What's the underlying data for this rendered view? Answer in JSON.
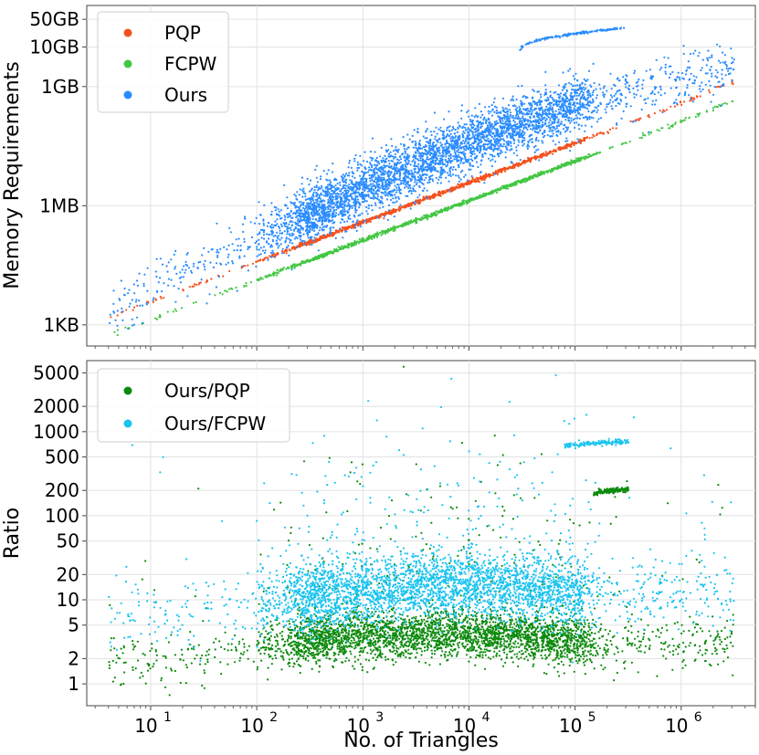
{
  "chart_data": [
    {
      "type": "scatter",
      "title": "",
      "xlabel": "",
      "ylabel": "Memory Requirements",
      "xscale": "log",
      "yscale": "log",
      "xlim": [
        2.5,
        5000000
      ],
      "ylim_bytes": [
        300,
        120000000000
      ],
      "yticks": [
        {
          "value": 1024,
          "label": "1KB"
        },
        {
          "value": 1048576,
          "label": "1MB"
        },
        {
          "value": 1073741824,
          "label": "1GB"
        },
        {
          "value": 10737418240,
          "label": "10GB"
        },
        {
          "value": 53687091200,
          "label": "50GB"
        }
      ],
      "grid": true,
      "legend_position": "top-left",
      "series": [
        {
          "name": "PQP",
          "color": "#f4511e",
          "trend": "approximately linear in triangle count",
          "points": [
            [
              4,
              1600
            ],
            [
              10,
              4000
            ],
            [
              100,
              40000
            ],
            [
              1000,
              400000
            ],
            [
              10000,
              4000000
            ],
            [
              100000,
              40000000
            ],
            [
              1000000,
              400000000
            ],
            [
              3000000,
              1400000000
            ]
          ]
        },
        {
          "name": "FCPW",
          "color": "#43c743",
          "trend": "approximately linear in triangle count",
          "points": [
            [
              4,
              550
            ],
            [
              10,
              1400
            ],
            [
              100,
              14000
            ],
            [
              1000,
              140000
            ],
            [
              10000,
              1400000
            ],
            [
              100000,
              14000000
            ],
            [
              1000000,
              140000000
            ],
            [
              3000000,
              450000000
            ]
          ]
        },
        {
          "name": "Ours",
          "color": "#2a8cff",
          "trend": "super-linear with wide spread; plateau cluster near 3e4-3e5 triangles around 30GB",
          "points": [
            [
              4,
              3000
            ],
            [
              10,
              10000
            ],
            [
              100,
              150000
            ],
            [
              1000,
              3000000
            ],
            [
              10000,
              40000000
            ],
            [
              100000,
              400000000
            ],
            [
              1000000,
              1500000000
            ],
            [
              3000000,
              3000000000
            ]
          ]
        }
      ]
    },
    {
      "type": "scatter",
      "title": "",
      "xlabel": "No. of Triangles",
      "ylabel": "Ratio",
      "xscale": "log",
      "yscale": "log",
      "xlim": [
        2.5,
        5000000
      ],
      "ylim": [
        0.55,
        7000
      ],
      "xticks": [
        {
          "value": 10,
          "label": "10",
          "exp": "1"
        },
        {
          "value": 100,
          "label": "10",
          "exp": "2"
        },
        {
          "value": 1000,
          "label": "10",
          "exp": "3"
        },
        {
          "value": 10000,
          "label": "10",
          "exp": "4"
        },
        {
          "value": 100000,
          "label": "10",
          "exp": "5"
        },
        {
          "value": 1000000,
          "label": "10",
          "exp": "6"
        }
      ],
      "yticks": [
        1,
        2,
        5,
        10,
        20,
        50,
        100,
        200,
        500,
        1000,
        2000,
        5000
      ],
      "grid": true,
      "legend_position": "top-left",
      "series": [
        {
          "name": "Ours/PQP",
          "color": "#0d8a0d",
          "trend": "median near 3-4, spread 1-30; plateau ~200 at 1e5-3e5",
          "points": [
            [
              4,
              1.6
            ],
            [
              10,
              1.8
            ],
            [
              100,
              2.8
            ],
            [
              1000,
              3.8
            ],
            [
              10000,
              4.0
            ],
            [
              100000,
              3.2
            ],
            [
              1000000,
              3.0
            ],
            [
              3000000,
              2.9
            ]
          ]
        },
        {
          "name": "Ours/FCPW",
          "color": "#19c3f0",
          "trend": "median near 10-15, spread 4-1000; plateau ~750 at 1e5-3e5",
          "points": [
            [
              4,
              4.8
            ],
            [
              10,
              6.0
            ],
            [
              100,
              9.0
            ],
            [
              1000,
              13.0
            ],
            [
              10000,
              15.0
            ],
            [
              100000,
              12.0
            ],
            [
              1000000,
              11.5
            ],
            [
              3000000,
              11.5
            ]
          ]
        }
      ]
    }
  ]
}
